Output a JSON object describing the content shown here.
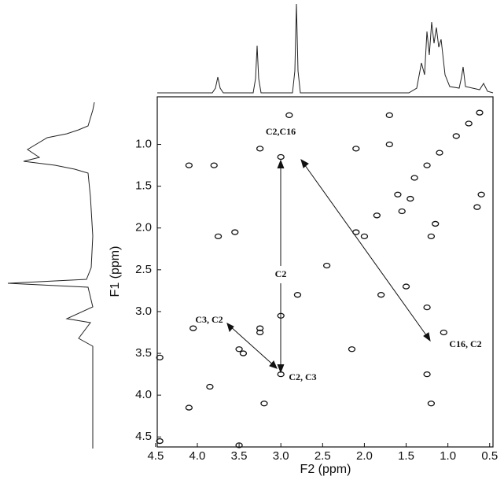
{
  "chart_data": {
    "type": "scatter",
    "x_label": "F2 (ppm)",
    "y_label": "F1 (ppm)",
    "xlim": [
      4.48,
      0.46
    ],
    "ylim": [
      0.43,
      4.62
    ],
    "xticks": [
      4.5,
      {
        "value": 4,
        "label": "4.0"
      },
      3.5,
      {
        "value": 3,
        "label": "3.0"
      },
      2.5,
      {
        "value": 2,
        "label": "2.0"
      },
      1.5,
      {
        "value": 1,
        "label": "1.0"
      },
      0.5
    ],
    "yticks": [
      {
        "value": 1,
        "label": "1.0"
      },
      1.5,
      {
        "value": 2,
        "label": "2.0"
      },
      2.5,
      {
        "value": 3,
        "label": "3.0"
      },
      3.5,
      {
        "value": 4,
        "label": "4.0"
      },
      4.5
    ],
    "color": "#111111",
    "x": [
      4.45,
      4.1,
      3.85,
      3.5,
      3.45,
      3.25,
      3.0,
      2.45,
      2.1,
      2.0,
      1.85,
      1.6,
      1.4,
      1.25,
      1.1,
      0.9,
      0.75,
      0.62,
      3.0,
      3.25,
      4.1,
      3.8,
      2.1,
      1.7,
      2.9,
      1.7,
      1.45,
      1.15,
      1.2,
      1.55,
      0.6,
      4.45,
      3.25,
      4.05,
      2.15,
      1.25,
      1.2,
      3.0,
      3.2,
      3.5,
      1.25,
      1.05,
      1.5,
      1.8,
      3.55,
      3.75,
      2.8,
      0.65
    ],
    "y": [
      4.55,
      4.15,
      3.9,
      3.45,
      3.5,
      3.25,
      3.05,
      2.45,
      2.05,
      2.1,
      1.85,
      1.6,
      1.4,
      1.25,
      1.1,
      0.9,
      0.75,
      0.62,
      1.15,
      1.05,
      1.25,
      1.25,
      1.05,
      0.65,
      0.65,
      1.0,
      1.65,
      1.95,
      2.1,
      1.8,
      1.6,
      3.55,
      3.2,
      3.2,
      3.45,
      3.75,
      4.1,
      3.75,
      4.1,
      4.6,
      2.95,
      3.25,
      2.7,
      2.8,
      2.05,
      2.1,
      2.8,
      1.75
    ],
    "annotations": [
      "C2,C16",
      "C2",
      "C3, C2",
      "C2, C3",
      "C16, C2"
    ]
  }
}
